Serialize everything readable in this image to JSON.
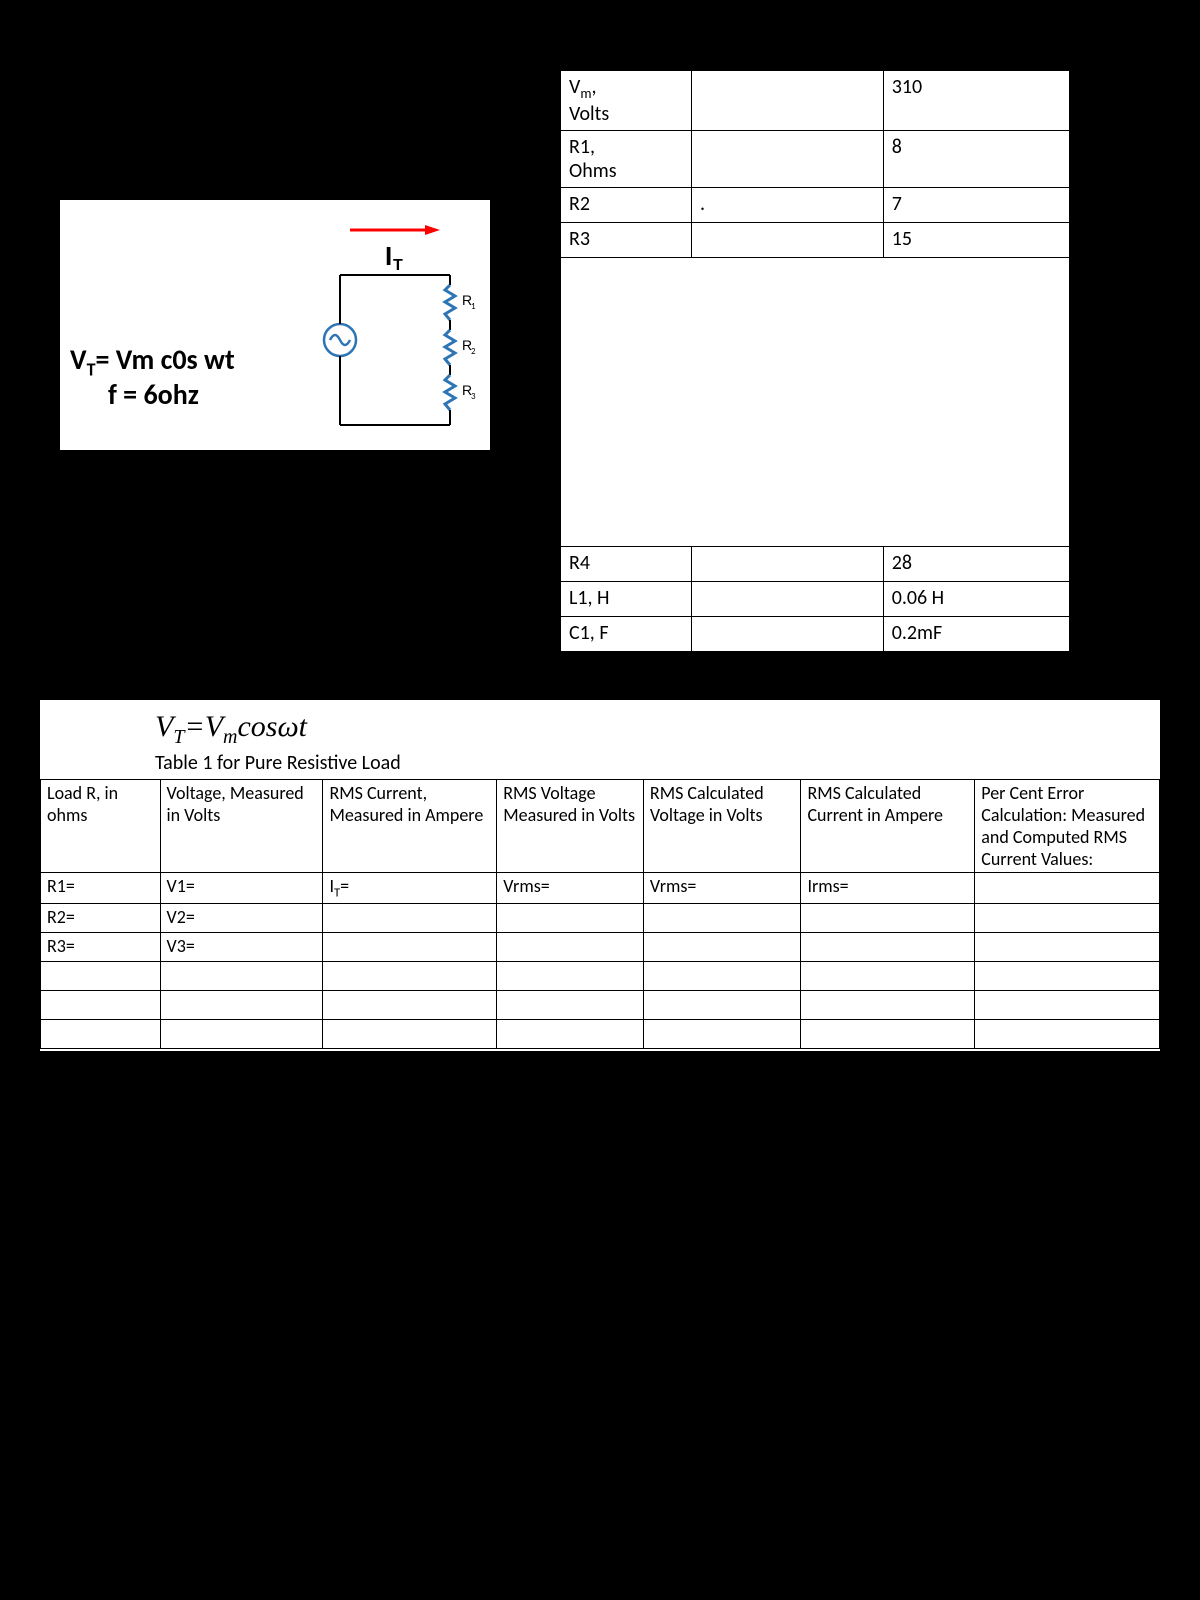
{
  "circuit": {
    "formula_line1_prefix": "V",
    "formula_line1_sub": "T",
    "formula_line1_rest": "= Vm c0s wt",
    "formula_line2": "f = 6ohz",
    "current_label": "I",
    "current_sub": "T",
    "r1_label": "R",
    "r1_sub": "1",
    "r2_label": "R",
    "r2_sub": "2",
    "r3_label": "R",
    "r3_sub": "3",
    "arrow_color": "#ff0000",
    "wire_color": "#000000",
    "resistor_color": "#2e75b6",
    "source_color": "#2e75b6"
  },
  "params": {
    "rows_top": [
      {
        "label_html": "V<sub>m</sub>,<br>Volts",
        "mid": "",
        "val": "310"
      },
      {
        "label_html": "R1,<br>Ohms",
        "mid": "",
        "val": "8"
      },
      {
        "label_html": "R2",
        "mid": ".",
        "val": "7"
      },
      {
        "label_html": "R3",
        "mid": "",
        "val": "15"
      }
    ],
    "rows_bottom": [
      {
        "label_html": "R4",
        "mid": "",
        "val": "28"
      },
      {
        "label_html": "L1, H",
        "mid": "",
        "val": "0.06 H"
      },
      {
        "label_html": "C1, F",
        "mid": "",
        "val": "0.2mF"
      }
    ]
  },
  "bottom": {
    "formula_prefix": "V",
    "formula_sub1": "T",
    "formula_mid": "=V",
    "formula_sub2": "m",
    "formula_suffix": "cosωt",
    "caption": "Table 1 for Pure Resistive Load",
    "headers": [
      "Load R, in ohms",
      "Voltage, Measured in Volts",
      "RMS Current, Measured in Ampere",
      "RMS Voltage Measured in Volts",
      "RMS Calculated Voltage in Volts",
      "RMS Calculated Current in Ampere",
      "Per Cent Error Calculation: Measured and Computed RMS Current Values:"
    ],
    "rows": [
      [
        "R1=",
        "V1=",
        "I<sub>T</sub>=",
        "Vrms=",
        "Vrms=",
        "Irms=",
        ""
      ],
      [
        "R2=",
        "V2=",
        "",
        "",
        "",
        "",
        ""
      ],
      [
        "R3=",
        "V3=",
        "",
        "",
        "",
        "",
        ""
      ],
      [
        "",
        "",
        "",
        "",
        "",
        "",
        ""
      ],
      [
        "",
        "",
        "",
        "",
        "",
        "",
        ""
      ],
      [
        "",
        "",
        "",
        "",
        "",
        "",
        ""
      ]
    ]
  }
}
